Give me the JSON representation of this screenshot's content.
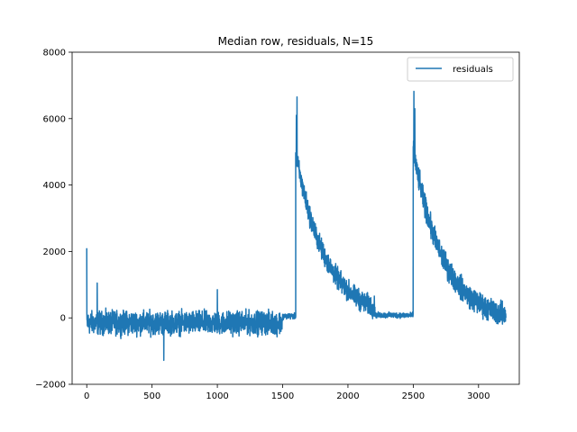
{
  "chart_data": {
    "type": "line",
    "title": "Median row, residuals, N=15",
    "xlabel": "",
    "ylabel": "",
    "xlim": [
      -112,
      3312
    ],
    "ylim": [
      -2000,
      8000
    ],
    "xticks": [
      0,
      500,
      1000,
      1500,
      2000,
      2500,
      3000
    ],
    "yticks": [
      -2000,
      0,
      2000,
      4000,
      6000,
      8000
    ],
    "grid": false,
    "legend_position": "top-right",
    "line_color": "#1f77b4",
    "series": [
      {
        "name": "residuals",
        "segments": [
          {
            "x_start": 0,
            "x_end": 1500,
            "baseline": -150,
            "noise_amplitude": 500,
            "spikes": [
              [
                0,
                2100
              ],
              [
                80,
                1050
              ],
              [
                590,
                -1280
              ],
              [
                1000,
                850
              ]
            ]
          },
          {
            "x_start": 1500,
            "x_end": 1600,
            "baseline": 50,
            "noise_amplitude": 120
          },
          {
            "x_start": 1600,
            "x_end": 2500,
            "decay_peak": 5000,
            "decay_baseline": -50,
            "decay_scale": 230,
            "noise_amplitude": 450,
            "spikes": [
              [
                1610,
                6650
              ],
              [
                1605,
                6100
              ]
            ]
          },
          {
            "x_start": 2210,
            "x_end": 2500,
            "baseline": 80,
            "noise_amplitude": 120
          },
          {
            "x_start": 2500,
            "x_end": 3210,
            "decay_peak": 5200,
            "decay_baseline": -150,
            "decay_scale": 230,
            "noise_amplitude": 500,
            "spikes": [
              [
                2505,
                6820
              ],
              [
                2512,
                6300
              ]
            ]
          }
        ]
      }
    ]
  }
}
